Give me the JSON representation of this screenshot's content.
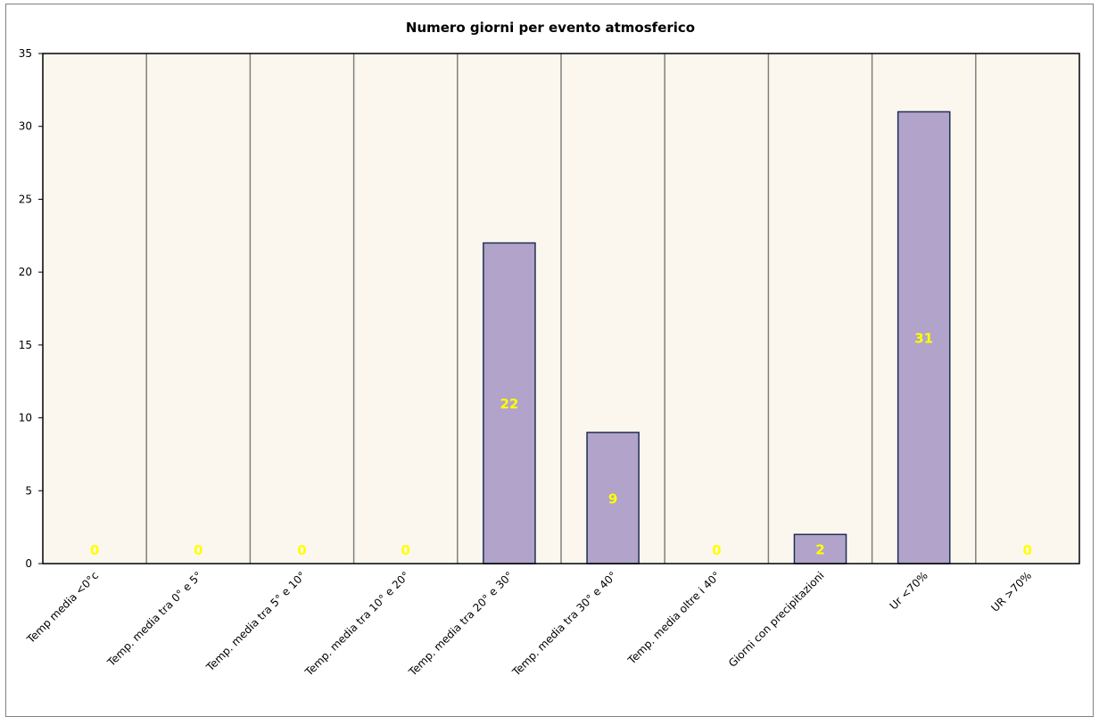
{
  "chart_data": {
    "type": "bar",
    "title": "Numero giorni  per evento atmosferico",
    "xlabel": "",
    "ylabel": "",
    "ylim": [
      0,
      35
    ],
    "yticks": [
      0,
      5,
      10,
      15,
      20,
      25,
      30,
      35
    ],
    "grid": "vertical",
    "legend": "none",
    "categories": [
      "Temp media <0°c",
      "Temp. media tra 0° e 5°",
      "Temp. media tra 5° e 10°",
      "Temp. media tra 10° e 20°",
      "Temp. media tra 20° e 30°",
      "Temp. media tra 30° e 40°",
      "Temp. media oltre i 40°",
      "Giorni con precipitazioni",
      "Ur  <70%",
      "UR >70%"
    ],
    "values": [
      0,
      0,
      0,
      0,
      22,
      9,
      0,
      2,
      31,
      0
    ],
    "colors": {
      "bar_fill": "#b1a3c9",
      "bar_stroke": "#1f2f55",
      "data_label": "#ffff00",
      "plot_bg": "#fbf7ee",
      "grid": "#808080",
      "frame": "#808080"
    }
  }
}
